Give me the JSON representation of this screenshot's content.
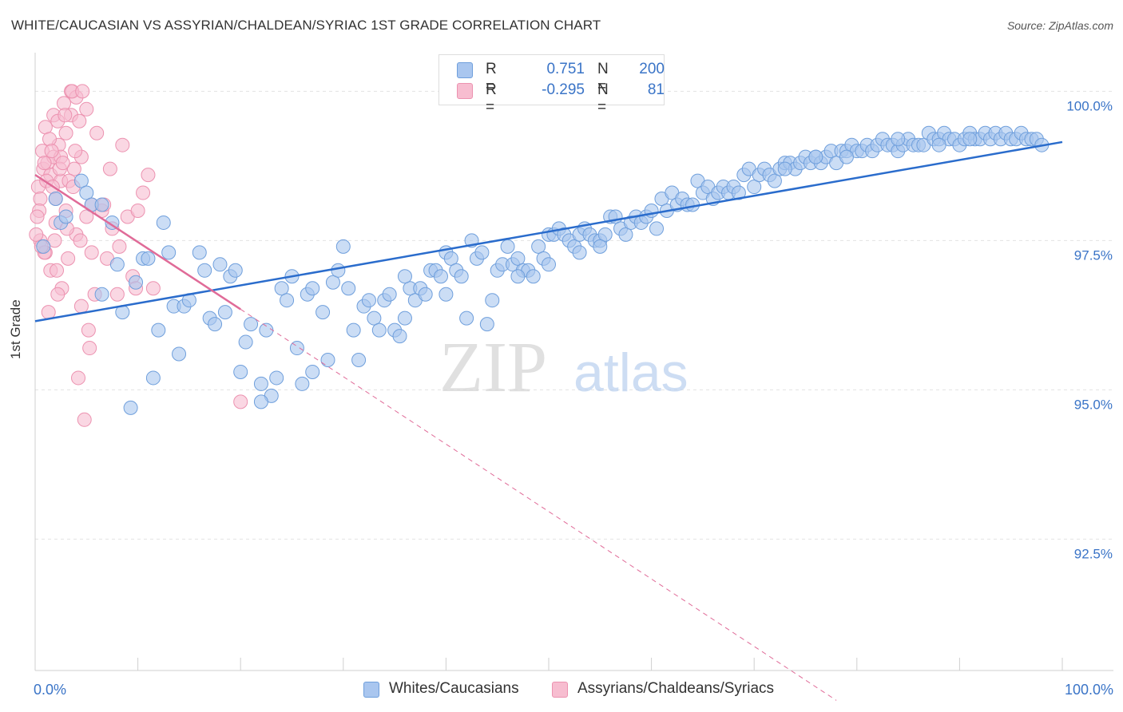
{
  "title": "WHITE/CAUCASIAN VS ASSYRIAN/CHALDEAN/SYRIAC 1ST GRADE CORRELATION CHART",
  "source": "Source: ZipAtlas.com",
  "watermark": {
    "zip": "ZIP",
    "atlas": "atlas"
  },
  "legend": {
    "rows": [
      {
        "r_label": "R =",
        "r_value": "0.751",
        "n_label": "N =",
        "n_value": "200"
      },
      {
        "r_label": "R =",
        "r_value": "-0.295",
        "n_label": "N =",
        "n_value": "81"
      }
    ]
  },
  "colors": {
    "blue_fill": "#a9c6ef",
    "blue_stroke": "#6f9fdc",
    "blue_line": "#2a6ccc",
    "pink_fill": "#f7bdd0",
    "pink_stroke": "#ec92b0",
    "pink_line": "#e06b98",
    "tick_label": "#3a74c7",
    "grid": "#e2e2e2"
  },
  "chart_data": {
    "type": "scatter",
    "title": "WHITE/CAUCASIAN VS ASSYRIAN/CHALDEAN/SYRIAC 1ST GRADE CORRELATION CHART",
    "xlabel": "",
    "ylabel": "1st Grade",
    "xlim": [
      0,
      100
    ],
    "ylim": [
      90.3,
      100.7
    ],
    "x_tick_labels": [
      "0.0%",
      "100.0%"
    ],
    "y_ticks": [
      92.5,
      95.0,
      97.5,
      100.0
    ],
    "y_tick_labels": [
      "92.5%",
      "95.0%",
      "97.5%",
      "100.0%"
    ],
    "grid": true,
    "legend_position": "top-center",
    "series": [
      {
        "name": "Whites/Caucasians",
        "trend": {
          "x": [
            0,
            100
          ],
          "y": [
            96.15,
            99.15
          ]
        },
        "points": [
          [
            0.8,
            97.4
          ],
          [
            2.0,
            98.2
          ],
          [
            2.5,
            97.8
          ],
          [
            3.0,
            97.9
          ],
          [
            4.5,
            98.5
          ],
          [
            5.0,
            98.3
          ],
          [
            5.5,
            98.1
          ],
          [
            6.5,
            98.1
          ],
          [
            7.5,
            97.8
          ],
          [
            8.0,
            97.1
          ],
          [
            6.5,
            96.6
          ],
          [
            8.5,
            96.3
          ],
          [
            9.3,
            94.7
          ],
          [
            9.8,
            96.8
          ],
          [
            10.5,
            97.2
          ],
          [
            11.0,
            97.2
          ],
          [
            11.5,
            95.2
          ],
          [
            12.0,
            96.0
          ],
          [
            12.5,
            97.8
          ],
          [
            13.0,
            97.3
          ],
          [
            13.5,
            96.4
          ],
          [
            14.0,
            95.6
          ],
          [
            14.5,
            96.4
          ],
          [
            15.0,
            96.5
          ],
          [
            16.0,
            97.3
          ],
          [
            16.5,
            97.0
          ],
          [
            17.0,
            96.2
          ],
          [
            17.5,
            96.1
          ],
          [
            18.0,
            97.1
          ],
          [
            18.5,
            96.3
          ],
          [
            19.0,
            96.9
          ],
          [
            19.5,
            97.0
          ],
          [
            20.0,
            95.3
          ],
          [
            20.5,
            95.8
          ],
          [
            21.0,
            96.1
          ],
          [
            22.0,
            95.1
          ],
          [
            22.5,
            96.0
          ],
          [
            23.0,
            94.9
          ],
          [
            23.5,
            95.2
          ],
          [
            24.0,
            96.7
          ],
          [
            24.5,
            96.5
          ],
          [
            25.0,
            96.9
          ],
          [
            25.5,
            95.7
          ],
          [
            26.0,
            95.1
          ],
          [
            26.5,
            96.6
          ],
          [
            27.0,
            96.7
          ],
          [
            28.0,
            96.3
          ],
          [
            28.5,
            95.5
          ],
          [
            29.0,
            96.8
          ],
          [
            29.5,
            97.0
          ],
          [
            30.0,
            97.4
          ],
          [
            30.5,
            96.7
          ],
          [
            31.0,
            96.0
          ],
          [
            31.5,
            95.5
          ],
          [
            32.0,
            96.4
          ],
          [
            32.5,
            96.5
          ],
          [
            33.0,
            96.2
          ],
          [
            33.5,
            96.0
          ],
          [
            34.0,
            96.5
          ],
          [
            34.5,
            96.6
          ],
          [
            35.0,
            96.0
          ],
          [
            35.5,
            95.9
          ],
          [
            36.0,
            96.2
          ],
          [
            36.5,
            96.7
          ],
          [
            37.0,
            96.5
          ],
          [
            37.5,
            96.7
          ],
          [
            38.0,
            96.6
          ],
          [
            38.5,
            97.0
          ],
          [
            39.0,
            97.0
          ],
          [
            39.5,
            96.9
          ],
          [
            40.0,
            97.3
          ],
          [
            40.5,
            97.2
          ],
          [
            41.0,
            97.0
          ],
          [
            41.5,
            96.9
          ],
          [
            42.0,
            96.2
          ],
          [
            42.5,
            97.5
          ],
          [
            43.0,
            97.2
          ],
          [
            43.5,
            97.3
          ],
          [
            44.0,
            96.1
          ],
          [
            44.5,
            96.5
          ],
          [
            45.0,
            97.0
          ],
          [
            45.5,
            97.1
          ],
          [
            46.0,
            97.4
          ],
          [
            46.5,
            97.1
          ],
          [
            47.0,
            97.2
          ],
          [
            47.5,
            97.0
          ],
          [
            48.0,
            97.0
          ],
          [
            48.5,
            96.9
          ],
          [
            49.0,
            97.4
          ],
          [
            49.5,
            97.2
          ],
          [
            50.0,
            97.6
          ],
          [
            50.5,
            97.6
          ],
          [
            51.0,
            97.7
          ],
          [
            51.5,
            97.6
          ],
          [
            52.0,
            97.5
          ],
          [
            52.5,
            97.4
          ],
          [
            53.0,
            97.6
          ],
          [
            53.5,
            97.7
          ],
          [
            54.0,
            97.6
          ],
          [
            54.5,
            97.5
          ],
          [
            55.0,
            97.5
          ],
          [
            55.5,
            97.6
          ],
          [
            56.0,
            97.9
          ],
          [
            56.5,
            97.9
          ],
          [
            57.0,
            97.7
          ],
          [
            57.5,
            97.6
          ],
          [
            58.0,
            97.8
          ],
          [
            58.5,
            97.9
          ],
          [
            59.0,
            97.8
          ],
          [
            59.5,
            97.9
          ],
          [
            60.0,
            98.0
          ],
          [
            60.5,
            97.7
          ],
          [
            61.0,
            98.2
          ],
          [
            61.5,
            98.0
          ],
          [
            62.0,
            98.3
          ],
          [
            62.5,
            98.1
          ],
          [
            63.0,
            98.2
          ],
          [
            63.5,
            98.1
          ],
          [
            64.0,
            98.1
          ],
          [
            64.5,
            98.5
          ],
          [
            65.0,
            98.3
          ],
          [
            65.5,
            98.4
          ],
          [
            66.0,
            98.2
          ],
          [
            66.5,
            98.3
          ],
          [
            67.0,
            98.4
          ],
          [
            67.5,
            98.3
          ],
          [
            68.0,
            98.4
          ],
          [
            68.5,
            98.3
          ],
          [
            69.0,
            98.6
          ],
          [
            69.5,
            98.7
          ],
          [
            70.0,
            98.4
          ],
          [
            70.5,
            98.6
          ],
          [
            71.0,
            98.7
          ],
          [
            71.5,
            98.6
          ],
          [
            72.0,
            98.5
          ],
          [
            72.5,
            98.7
          ],
          [
            73.0,
            98.8
          ],
          [
            73.5,
            98.8
          ],
          [
            74.0,
            98.7
          ],
          [
            74.5,
            98.8
          ],
          [
            75.0,
            98.9
          ],
          [
            75.5,
            98.8
          ],
          [
            76.0,
            98.9
          ],
          [
            76.5,
            98.8
          ],
          [
            77.0,
            98.9
          ],
          [
            77.5,
            99.0
          ],
          [
            78.0,
            98.8
          ],
          [
            78.5,
            99.0
          ],
          [
            79.0,
            99.0
          ],
          [
            79.5,
            99.1
          ],
          [
            80.0,
            99.0
          ],
          [
            80.5,
            99.0
          ],
          [
            81.0,
            99.1
          ],
          [
            81.5,
            99.0
          ],
          [
            82.0,
            99.1
          ],
          [
            82.5,
            99.2
          ],
          [
            83.0,
            99.1
          ],
          [
            83.5,
            99.1
          ],
          [
            84.0,
            99.0
          ],
          [
            84.5,
            99.1
          ],
          [
            85.0,
            99.2
          ],
          [
            85.5,
            99.1
          ],
          [
            86.0,
            99.1
          ],
          [
            86.5,
            99.1
          ],
          [
            87.0,
            99.3
          ],
          [
            87.5,
            99.2
          ],
          [
            88.0,
            99.2
          ],
          [
            88.5,
            99.3
          ],
          [
            89.0,
            99.2
          ],
          [
            89.5,
            99.2
          ],
          [
            90.0,
            99.1
          ],
          [
            90.5,
            99.2
          ],
          [
            91.0,
            99.3
          ],
          [
            91.5,
            99.2
          ],
          [
            92.0,
            99.2
          ],
          [
            92.5,
            99.3
          ],
          [
            93.0,
            99.2
          ],
          [
            93.5,
            99.3
          ],
          [
            94.0,
            99.2
          ],
          [
            94.5,
            99.3
          ],
          [
            95.0,
            99.2
          ],
          [
            95.5,
            99.2
          ],
          [
            96.0,
            99.3
          ],
          [
            96.5,
            99.2
          ],
          [
            97.0,
            99.2
          ],
          [
            97.5,
            99.2
          ],
          [
            98.0,
            99.1
          ],
          [
            73.0,
            98.7
          ],
          [
            76.0,
            98.9
          ],
          [
            79.0,
            98.9
          ],
          [
            84.0,
            99.2
          ],
          [
            88.0,
            99.1
          ],
          [
            91.0,
            99.2
          ],
          [
            50.0,
            97.1
          ],
          [
            53.0,
            97.3
          ],
          [
            47.0,
            96.9
          ],
          [
            55.0,
            97.4
          ],
          [
            36.0,
            96.9
          ],
          [
            40.0,
            96.6
          ],
          [
            27.0,
            95.3
          ],
          [
            22.0,
            94.8
          ]
        ]
      },
      {
        "name": "Assyrians/Chaldeans/Syriacs",
        "trend": {
          "x": [
            0,
            20
          ],
          "y": [
            98.6,
            96.35
          ]
        },
        "trend_extended": {
          "x": [
            20,
            78
          ],
          "y": [
            96.35,
            89.8
          ]
        },
        "points": [
          [
            0.3,
            98.4
          ],
          [
            0.5,
            98.2
          ],
          [
            0.5,
            97.5
          ],
          [
            0.7,
            99.0
          ],
          [
            0.8,
            98.7
          ],
          [
            1.0,
            99.4
          ],
          [
            1.0,
            97.3
          ],
          [
            1.2,
            98.8
          ],
          [
            1.5,
            98.6
          ],
          [
            1.5,
            97.0
          ],
          [
            1.8,
            99.6
          ],
          [
            1.8,
            98.9
          ],
          [
            2.0,
            98.2
          ],
          [
            2.0,
            97.8
          ],
          [
            2.2,
            99.5
          ],
          [
            2.3,
            99.1
          ],
          [
            2.5,
            98.9
          ],
          [
            2.5,
            98.5
          ],
          [
            2.8,
            99.8
          ],
          [
            3.0,
            99.3
          ],
          [
            3.0,
            98.0
          ],
          [
            3.2,
            97.2
          ],
          [
            3.5,
            100.0
          ],
          [
            3.5,
            99.6
          ],
          [
            3.8,
            98.7
          ],
          [
            4.0,
            99.9
          ],
          [
            4.0,
            97.6
          ],
          [
            4.3,
            99.5
          ],
          [
            4.5,
            98.9
          ],
          [
            4.5,
            96.4
          ],
          [
            5.0,
            99.7
          ],
          [
            5.0,
            97.9
          ],
          [
            5.3,
            95.7
          ],
          [
            5.5,
            98.1
          ],
          [
            5.5,
            97.3
          ],
          [
            5.8,
            96.6
          ],
          [
            6.0,
            99.3
          ],
          [
            6.5,
            98.0
          ],
          [
            7.0,
            97.2
          ],
          [
            7.5,
            97.7
          ],
          [
            8.0,
            96.6
          ],
          [
            8.5,
            99.1
          ],
          [
            9.0,
            97.9
          ],
          [
            9.5,
            96.9
          ],
          [
            10.0,
            98.0
          ],
          [
            10.5,
            98.3
          ],
          [
            11.0,
            98.6
          ],
          [
            11.5,
            96.7
          ],
          [
            0.4,
            98.0
          ],
          [
            0.9,
            97.3
          ],
          [
            1.3,
            96.3
          ],
          [
            2.1,
            97.0
          ],
          [
            2.6,
            96.7
          ],
          [
            3.3,
            98.5
          ],
          [
            3.7,
            98.4
          ],
          [
            4.2,
            95.2
          ],
          [
            4.8,
            94.5
          ],
          [
            5.2,
            96.0
          ],
          [
            1.1,
            98.5
          ],
          [
            1.7,
            98.4
          ],
          [
            0.6,
            97.4
          ],
          [
            2.4,
            98.7
          ],
          [
            3.9,
            99.0
          ],
          [
            0.2,
            97.9
          ],
          [
            1.4,
            99.2
          ],
          [
            2.9,
            99.6
          ],
          [
            3.6,
            100.0
          ],
          [
            4.6,
            100.0
          ],
          [
            1.9,
            97.5
          ],
          [
            2.7,
            98.8
          ],
          [
            0.1,
            97.6
          ],
          [
            20.0,
            94.8
          ],
          [
            8.2,
            97.4
          ],
          [
            9.8,
            96.7
          ],
          [
            6.7,
            98.1
          ],
          [
            7.3,
            98.7
          ],
          [
            1.6,
            99.0
          ],
          [
            0.9,
            98.8
          ],
          [
            2.2,
            96.6
          ],
          [
            3.1,
            97.7
          ],
          [
            4.4,
            97.5
          ]
        ]
      }
    ]
  }
}
